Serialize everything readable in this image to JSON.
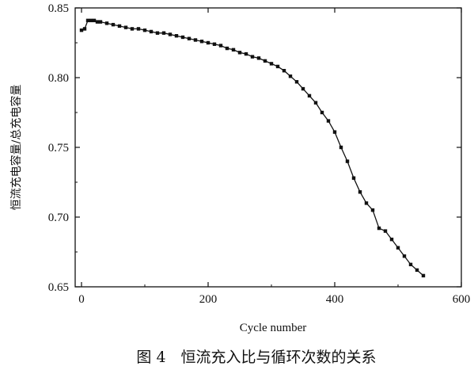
{
  "chart_data": {
    "type": "line",
    "title": "",
    "caption": "图 4　恒流充入比与循环次数的关系",
    "xlabel": "Cycle number",
    "ylabel": "恒流充电容量/总充电容量",
    "xlim": [
      -10,
      600
    ],
    "ylim": [
      0.65,
      0.85
    ],
    "xticks": [
      0,
      200,
      400,
      600
    ],
    "yticks": [
      0.65,
      0.7,
      0.75,
      0.8,
      0.85
    ],
    "xtick_labels": [
      "0",
      "200",
      "400",
      "600"
    ],
    "ytick_labels": [
      "0.65",
      "0.70",
      "0.75",
      "0.80",
      "0.85"
    ],
    "grid": false,
    "legend": "none",
    "marker": "square",
    "color": "#111111",
    "series": [
      {
        "x": [
          0,
          5,
          10,
          15,
          20,
          25,
          30,
          40,
          50,
          60,
          70,
          80,
          90,
          100,
          110,
          120,
          130,
          140,
          150,
          160,
          170,
          180,
          190,
          200,
          210,
          220,
          230,
          240,
          250,
          260,
          270,
          280,
          290,
          300,
          310,
          320,
          330,
          340,
          350,
          360,
          370,
          380,
          390,
          400,
          410,
          420,
          430,
          440,
          450,
          460,
          470,
          480,
          490,
          500,
          510,
          520,
          530,
          540
        ],
        "y": [
          0.834,
          0.835,
          0.841,
          0.841,
          0.841,
          0.84,
          0.84,
          0.839,
          0.838,
          0.837,
          0.836,
          0.835,
          0.835,
          0.834,
          0.833,
          0.832,
          0.832,
          0.831,
          0.83,
          0.829,
          0.828,
          0.827,
          0.826,
          0.825,
          0.824,
          0.823,
          0.821,
          0.82,
          0.818,
          0.817,
          0.815,
          0.814,
          0.812,
          0.81,
          0.808,
          0.805,
          0.801,
          0.797,
          0.792,
          0.787,
          0.782,
          0.775,
          0.769,
          0.761,
          0.75,
          0.74,
          0.728,
          0.718,
          0.71,
          0.705,
          0.692,
          0.69,
          0.684,
          0.678,
          0.672,
          0.666,
          0.662,
          0.658
        ]
      }
    ]
  }
}
